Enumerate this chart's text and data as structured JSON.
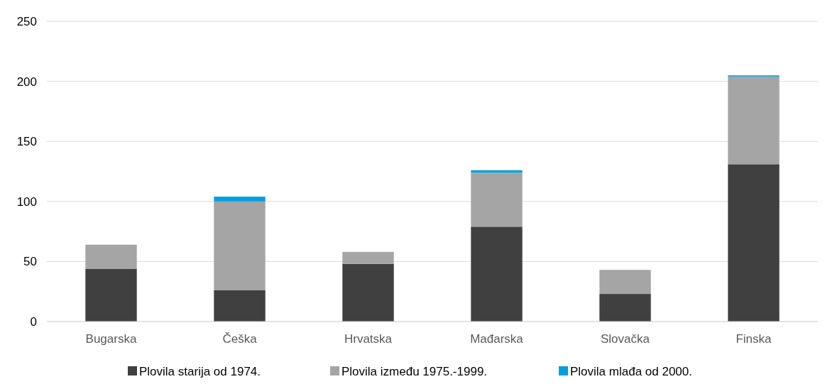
{
  "chart_data": {
    "type": "bar",
    "stacked": true,
    "categories": [
      "Bugarska",
      "Češka",
      "Hrvatska",
      "Mađarska",
      "Slovačka",
      "Finska"
    ],
    "series": [
      {
        "name": "Plovila starija od 1974.",
        "color": "#404040",
        "values": [
          44,
          26,
          48,
          79,
          23,
          131
        ]
      },
      {
        "name": "Plovila između 1975.-1999.",
        "color": "#a5a5a5",
        "values": [
          20,
          74,
          10,
          45,
          20,
          73
        ]
      },
      {
        "name": "Plovila mlađa od 2000.",
        "color": "#00a0dc",
        "values": [
          0,
          4,
          0,
          2,
          0,
          1
        ]
      }
    ],
    "ylim": [
      0,
      250
    ],
    "yticks": [
      0,
      50,
      100,
      150,
      200,
      250
    ],
    "grid": "y",
    "legend": "bottom"
  }
}
